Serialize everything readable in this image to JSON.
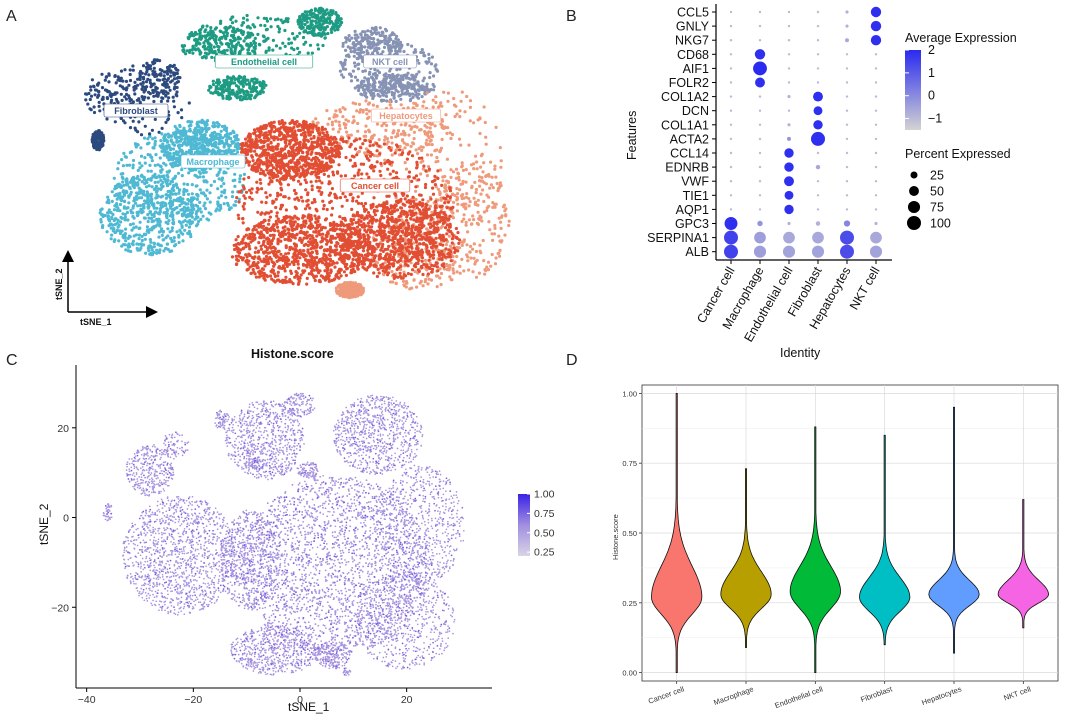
{
  "panels": {
    "a": "A",
    "b": "B",
    "c": "C",
    "d": "D"
  },
  "chart_data": [
    {
      "type": "scatter",
      "id": "A",
      "xlabel": "tSNE_1",
      "ylabel": "tSNE_2",
      "clusters": [
        {
          "name": "Fibroblast",
          "color": "#2d4a7e",
          "points": 450
        },
        {
          "name": "Endothelial cell",
          "color": "#1e9b83",
          "points": 800
        },
        {
          "name": "NKT cell",
          "color": "#8793b4",
          "points": 600
        },
        {
          "name": "Hepatocytes",
          "color": "#ee9a7b",
          "points": 1100
        },
        {
          "name": "Macrophage",
          "color": "#4fb9d3",
          "points": 1400
        },
        {
          "name": "Cancer cell",
          "color": "#e24e33",
          "points": 2900
        }
      ]
    },
    {
      "type": "dot",
      "id": "B",
      "ylabel": "Features",
      "xlabel": "Identity",
      "features": [
        "CCL5",
        "GNLY",
        "NKG7",
        "CD68",
        "AIF1",
        "FOLR2",
        "COL1A2",
        "DCN",
        "COL1A1",
        "ACTA2",
        "CCL14",
        "EDNRB",
        "VWF",
        "TIE1",
        "AQP1",
        "GPC3",
        "SERPINA1",
        "ALB"
      ],
      "identities": [
        "Cancer cell",
        "Macrophage",
        "Endothelial cell",
        "Fibroblast",
        "Hepatocytes",
        "NKT cell"
      ],
      "average_expression": [
        [
          -1,
          -1,
          -1,
          -1,
          -0.8,
          1.9
        ],
        [
          -1,
          -1,
          -1,
          -1,
          -0.8,
          1.9
        ],
        [
          -1,
          -1,
          -1,
          -1,
          -0.6,
          1.9
        ],
        [
          -1,
          1.9,
          -1,
          -1,
          -1,
          -1
        ],
        [
          -1,
          2.0,
          -1,
          -1,
          -1,
          -1
        ],
        [
          -1,
          1.9,
          -1,
          -1,
          -1,
          -1
        ],
        [
          -1,
          -1,
          -0.8,
          1.9,
          -1,
          -1
        ],
        [
          -1,
          -1,
          -1,
          1.9,
          -1,
          -1
        ],
        [
          -1,
          -1,
          -0.8,
          1.9,
          -1,
          -1
        ],
        [
          -1,
          -1,
          -0.2,
          1.9,
          -1,
          -1
        ],
        [
          -1,
          -1,
          1.9,
          -1,
          -1,
          -1
        ],
        [
          -1,
          -1,
          1.9,
          -0.6,
          -1,
          -1
        ],
        [
          -1,
          -1,
          1.9,
          -1,
          -1,
          -1
        ],
        [
          -1,
          -1,
          1.9,
          -1,
          -1,
          -1
        ],
        [
          -1,
          -1,
          1.9,
          -1,
          -1,
          -1
        ],
        [
          1.9,
          -0.2,
          -0.8,
          -0.8,
          0.1,
          -0.8
        ],
        [
          1.5,
          -0.4,
          -0.6,
          -0.6,
          1.3,
          -0.6
        ],
        [
          1.5,
          -0.4,
          -0.5,
          -0.5,
          1.3,
          -0.5
        ]
      ],
      "percent_expressed": [
        [
          3,
          3,
          3,
          3,
          5,
          55
        ],
        [
          3,
          3,
          3,
          3,
          5,
          55
        ],
        [
          3,
          3,
          3,
          3,
          8,
          55
        ],
        [
          3,
          55,
          3,
          3,
          3,
          3
        ],
        [
          3,
          98,
          3,
          3,
          3,
          3
        ],
        [
          3,
          50,
          3,
          3,
          3,
          3
        ],
        [
          3,
          3,
          5,
          50,
          3,
          3
        ],
        [
          3,
          3,
          3,
          40,
          3,
          3
        ],
        [
          3,
          3,
          5,
          45,
          3,
          3
        ],
        [
          3,
          3,
          8,
          100,
          3,
          3
        ],
        [
          3,
          3,
          45,
          3,
          3,
          3
        ],
        [
          3,
          3,
          45,
          10,
          3,
          3
        ],
        [
          3,
          3,
          50,
          3,
          3,
          3
        ],
        [
          3,
          3,
          40,
          3,
          3,
          3
        ],
        [
          3,
          3,
          45,
          3,
          3,
          3
        ],
        [
          85,
          15,
          5,
          10,
          20,
          5
        ],
        [
          100,
          70,
          70,
          70,
          100,
          70
        ],
        [
          100,
          75,
          75,
          75,
          100,
          75
        ]
      ],
      "legend_color": {
        "title": "Average Expression",
        "ticks": [
          "2",
          "1",
          "0",
          "−1"
        ],
        "range": [
          -1.5,
          2
        ]
      },
      "legend_size": {
        "title": "Percent Expressed",
        "values": [
          25,
          50,
          75,
          100
        ],
        "labels": [
          "25",
          "50",
          "75",
          "100"
        ]
      }
    },
    {
      "type": "scatter",
      "id": "C",
      "title": "Histone.score",
      "xlabel": "tSNE_1",
      "ylabel": "tSNE_2",
      "xlim": [
        -42,
        36
      ],
      "ylim": [
        -38,
        34
      ],
      "xticks": [
        -40,
        -20,
        0,
        20
      ],
      "xtick_labels": [
        "−40",
        "−20",
        "0",
        "20"
      ],
      "yticks": [
        20,
        0,
        -20
      ],
      "ytick_labels": [
        "20",
        "0",
        "−20"
      ],
      "colorbar": {
        "ticks": [
          "1.00",
          "0.75",
          "0.50",
          "0.25"
        ],
        "range": [
          0.2,
          1.0
        ]
      }
    },
    {
      "type": "violin",
      "id": "D",
      "ylabel": "Histone.score",
      "categories": [
        "Cancer cell",
        "Macrophage",
        "Endothelial cell",
        "Fibroblast",
        "Hepatocytes",
        "NKT cell"
      ],
      "colors": [
        "#f8766d",
        "#b79f00",
        "#00ba38",
        "#00bfc4",
        "#619cff",
        "#f564e3"
      ],
      "ylim": [
        -0.03,
        1.03
      ],
      "yticks": [
        0,
        0.25,
        0.5,
        0.75,
        1.0
      ],
      "ytick_labels": [
        "0.00",
        "0.25",
        "0.50",
        "0.75",
        "1.00"
      ],
      "series": [
        {
          "min": 0.0,
          "max": 1.0,
          "mode": 0.27,
          "sd_low": 0.06,
          "sd_high": 0.11
        },
        {
          "min": 0.09,
          "max": 0.73,
          "mode": 0.28,
          "sd_low": 0.05,
          "sd_high": 0.08
        },
        {
          "min": 0.0,
          "max": 0.88,
          "mode": 0.29,
          "sd_low": 0.06,
          "sd_high": 0.09
        },
        {
          "min": 0.1,
          "max": 0.85,
          "mode": 0.27,
          "sd_low": 0.05,
          "sd_high": 0.07
        },
        {
          "min": 0.07,
          "max": 0.95,
          "mode": 0.28,
          "sd_low": 0.04,
          "sd_high": 0.05
        },
        {
          "min": 0.16,
          "max": 0.62,
          "mode": 0.28,
          "sd_low": 0.03,
          "sd_high": 0.05
        }
      ]
    }
  ]
}
